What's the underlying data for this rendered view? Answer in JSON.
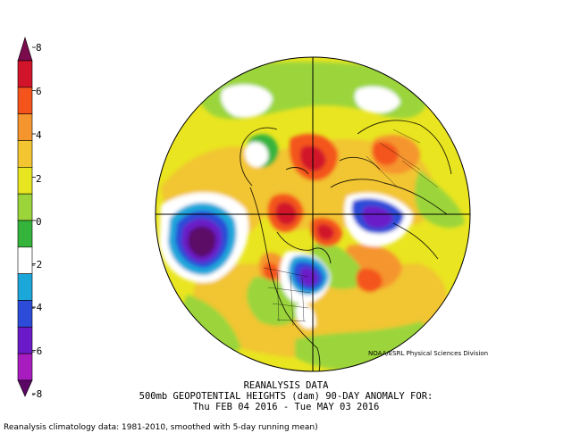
{
  "legend": {
    "tick_labels": [
      "8",
      "6",
      "4",
      "2",
      "0",
      "-2",
      "-4",
      "-6",
      "-8"
    ],
    "colors": [
      "#7a0b4d",
      "#d2142a",
      "#f4541c",
      "#f5952e",
      "#f2c531",
      "#e7e51f",
      "#9bd53a",
      "#35b43c",
      "#ffffff",
      "#1ca7da",
      "#2c4bd8",
      "#6a1ac8",
      "#a81cbf",
      "#5b0766"
    ]
  },
  "credit": "NOAA/ESRL Physical Sciences Division",
  "caption": {
    "line1": "REANALYSIS DATA",
    "line2": "500mb GEOPOTENTIAL HEIGHTS (dam)  90-DAY ANOMALY FOR:",
    "line3": "Thu FEB 04 2016 - Tue MAY 03 2016"
  },
  "footer": "Reanalysis climatology data: 1981-2010, smoothed with 5-day running mean)"
}
